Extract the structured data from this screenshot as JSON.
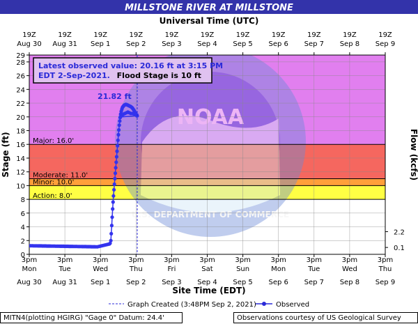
{
  "chart_data": {
    "type": "line",
    "title": "MILLSTONE RIVER AT MILLSTONE",
    "top_axis_title": "Universal Time (UTC)",
    "bottom_axis_title": "Site Time (EDT)",
    "ylabel": "Stage (ft)",
    "y2label": "Flow (kcfs)",
    "ylim": [
      0,
      29
    ],
    "y_ticks": [
      0,
      2,
      4,
      6,
      8,
      10,
      12,
      14,
      16,
      18,
      20,
      22,
      24,
      26,
      28,
      29
    ],
    "y2_ticks": [
      {
        "stage": 3.3,
        "label": "2.2"
      },
      {
        "stage": 1.0,
        "label": "0.1"
      }
    ],
    "x_range_hours": [
      0,
      240
    ],
    "top_ticks": [
      {
        "hour": 0,
        "line1": "19Z",
        "line2": "Aug 30"
      },
      {
        "hour": 24,
        "line1": "19Z",
        "line2": "Aug 31"
      },
      {
        "hour": 48,
        "line1": "19Z",
        "line2": "Sep 1"
      },
      {
        "hour": 72,
        "line1": "19Z",
        "line2": "Sep 2"
      },
      {
        "hour": 96,
        "line1": "19Z",
        "line2": "Sep 3"
      },
      {
        "hour": 120,
        "line1": "19Z",
        "line2": "Sep 4"
      },
      {
        "hour": 144,
        "line1": "19Z",
        "line2": "Sep 5"
      },
      {
        "hour": 168,
        "line1": "19Z",
        "line2": "Sep 6"
      },
      {
        "hour": 192,
        "line1": "19Z",
        "line2": "Sep 7"
      },
      {
        "hour": 216,
        "line1": "19Z",
        "line2": "Sep 8"
      },
      {
        "hour": 240,
        "line1": "19Z",
        "line2": "Sep 9"
      }
    ],
    "bottom_ticks": [
      {
        "hour": 0,
        "line1": "3pm",
        "line2": "Mon",
        "line3": "Aug 30"
      },
      {
        "hour": 24,
        "line1": "3pm",
        "line2": "Tue",
        "line3": "Aug 31"
      },
      {
        "hour": 48,
        "line1": "3pm",
        "line2": "Wed",
        "line3": "Sep 1"
      },
      {
        "hour": 72,
        "line1": "3pm",
        "line2": "Thu",
        "line3": "Sep 2"
      },
      {
        "hour": 96,
        "line1": "3pm",
        "line2": "Fri",
        "line3": "Sep 3"
      },
      {
        "hour": 120,
        "line1": "3pm",
        "line2": "Sat",
        "line3": "Sep 4"
      },
      {
        "hour": 144,
        "line1": "3pm",
        "line2": "Sun",
        "line3": "Sep 5"
      },
      {
        "hour": 168,
        "line1": "3pm",
        "line2": "Mon",
        "line3": "Sep 6"
      },
      {
        "hour": 192,
        "line1": "3pm",
        "line2": "Tue",
        "line3": "Sep 7"
      },
      {
        "hour": 216,
        "line1": "3pm",
        "line2": "Wed",
        "line3": "Sep 8"
      },
      {
        "hour": 240,
        "line1": "3pm",
        "line2": "Thu",
        "line3": "Sep 9"
      }
    ],
    "flood_categories": [
      {
        "name": "Major",
        "label": "Major: 16.0'",
        "from": 16,
        "to": 29,
        "color": "#e17fef"
      },
      {
        "name": "Moderate",
        "label": "Moderate: 11.0'",
        "from": 11,
        "to": 16,
        "color": "#f5675f"
      },
      {
        "name": "Minor",
        "label": "Minor: 10.0'",
        "from": 10,
        "to": 11,
        "color": "#ff9f3a"
      },
      {
        "name": "Action",
        "label": "Action: 8.0'",
        "from": 8,
        "to": 10,
        "color": "#ffff44"
      }
    ],
    "graph_created_hour": 72.8,
    "peak_label": "21.82 ft",
    "peak": {
      "hour": 65,
      "stage": 21.82
    },
    "latest_observed": {
      "line1": "Latest observed value: 20.16 ft at 3:15 PM",
      "line2a": "EDT 2-Sep-2021.",
      "line2b": "Flood Stage is 10 ft"
    },
    "legend": {
      "graph_created": "Graph Created (3:48PM Sep 2, 2021)",
      "observed": "Observed"
    },
    "series": [
      {
        "name": "Observed",
        "color": "#3333ee",
        "points": [
          [
            0,
            1.25
          ],
          [
            1,
            1.25
          ],
          [
            2,
            1.25
          ],
          [
            3,
            1.24
          ],
          [
            4,
            1.24
          ],
          [
            5,
            1.24
          ],
          [
            6,
            1.23
          ],
          [
            7,
            1.23
          ],
          [
            8,
            1.23
          ],
          [
            9,
            1.22
          ],
          [
            10,
            1.22
          ],
          [
            11,
            1.22
          ],
          [
            12,
            1.21
          ],
          [
            13,
            1.21
          ],
          [
            14,
            1.21
          ],
          [
            15,
            1.2
          ],
          [
            16,
            1.2
          ],
          [
            17,
            1.2
          ],
          [
            18,
            1.19
          ],
          [
            19,
            1.19
          ],
          [
            20,
            1.19
          ],
          [
            21,
            1.18
          ],
          [
            22,
            1.18
          ],
          [
            23,
            1.18
          ],
          [
            24,
            1.17
          ],
          [
            25,
            1.17
          ],
          [
            26,
            1.17
          ],
          [
            27,
            1.16
          ],
          [
            28,
            1.16
          ],
          [
            29,
            1.16
          ],
          [
            30,
            1.15
          ],
          [
            31,
            1.15
          ],
          [
            32,
            1.15
          ],
          [
            33,
            1.14
          ],
          [
            34,
            1.14
          ],
          [
            35,
            1.14
          ],
          [
            36,
            1.13
          ],
          [
            37,
            1.13
          ],
          [
            38,
            1.13
          ],
          [
            39,
            1.12
          ],
          [
            40,
            1.12
          ],
          [
            41,
            1.12
          ],
          [
            42,
            1.11
          ],
          [
            43,
            1.11
          ],
          [
            44,
            1.11
          ],
          [
            45,
            1.1
          ],
          [
            46,
            1.1
          ],
          [
            47,
            1.15
          ],
          [
            48,
            1.2
          ],
          [
            49,
            1.25
          ],
          [
            50,
            1.3
          ],
          [
            51,
            1.35
          ],
          [
            52,
            1.4
          ],
          [
            53,
            1.45
          ],
          [
            54,
            1.5
          ],
          [
            54.5,
            1.6
          ],
          [
            55,
            2.0
          ],
          [
            55.3,
            3.0
          ],
          [
            55.6,
            4.2
          ],
          [
            55.9,
            5.4
          ],
          [
            56.2,
            6.6
          ],
          [
            56.5,
            7.6
          ],
          [
            56.8,
            8.5
          ],
          [
            57.1,
            9.4
          ],
          [
            57.4,
            10.2
          ],
          [
            57.7,
            11.0
          ],
          [
            58,
            11.8
          ],
          [
            58.3,
            12.6
          ],
          [
            58.6,
            13.4
          ],
          [
            58.9,
            14.2
          ],
          [
            59.2,
            15.0
          ],
          [
            59.5,
            15.8
          ],
          [
            59.8,
            16.6
          ],
          [
            60.1,
            17.4
          ],
          [
            60.4,
            18.1
          ],
          [
            60.7,
            18.8
          ],
          [
            61,
            19.4
          ],
          [
            61.3,
            19.9
          ],
          [
            61.6,
            20.4
          ],
          [
            62,
            20.8
          ],
          [
            62.4,
            21.1
          ],
          [
            62.8,
            21.35
          ],
          [
            63.2,
            21.5
          ],
          [
            63.6,
            21.6
          ],
          [
            64,
            21.7
          ],
          [
            64.5,
            21.75
          ],
          [
            65,
            21.82
          ],
          [
            65.5,
            21.8
          ],
          [
            66,
            21.75
          ],
          [
            66.5,
            21.7
          ],
          [
            67,
            21.65
          ],
          [
            67.5,
            21.6
          ],
          [
            68,
            21.55
          ],
          [
            68.5,
            21.5
          ],
          [
            69,
            21.4
          ],
          [
            69.5,
            21.3
          ],
          [
            70,
            21.15
          ],
          [
            70.5,
            21.0
          ],
          [
            71,
            20.8
          ],
          [
            71.5,
            20.6
          ],
          [
            72,
            20.4
          ],
          [
            72.5,
            20.16
          ],
          [
            61.5,
            20.0
          ],
          [
            62.5,
            20.2
          ],
          [
            63.5,
            20.4
          ],
          [
            64.5,
            20.5
          ],
          [
            65.5,
            20.6
          ],
          [
            66.5,
            20.7
          ],
          [
            67.5,
            20.6
          ],
          [
            68.5,
            20.5
          ],
          [
            69.5,
            20.5
          ],
          [
            70.5,
            20.45
          ],
          [
            71.5,
            20.4
          ],
          [
            72.5,
            20.3
          ],
          [
            72.8,
            20.16
          ]
        ]
      }
    ]
  },
  "footer": {
    "left": "MITN4(plotting HGIRG) \"Gage 0\" Datum: 24.4'",
    "right": "Observations courtesy of US Geological Survey"
  }
}
